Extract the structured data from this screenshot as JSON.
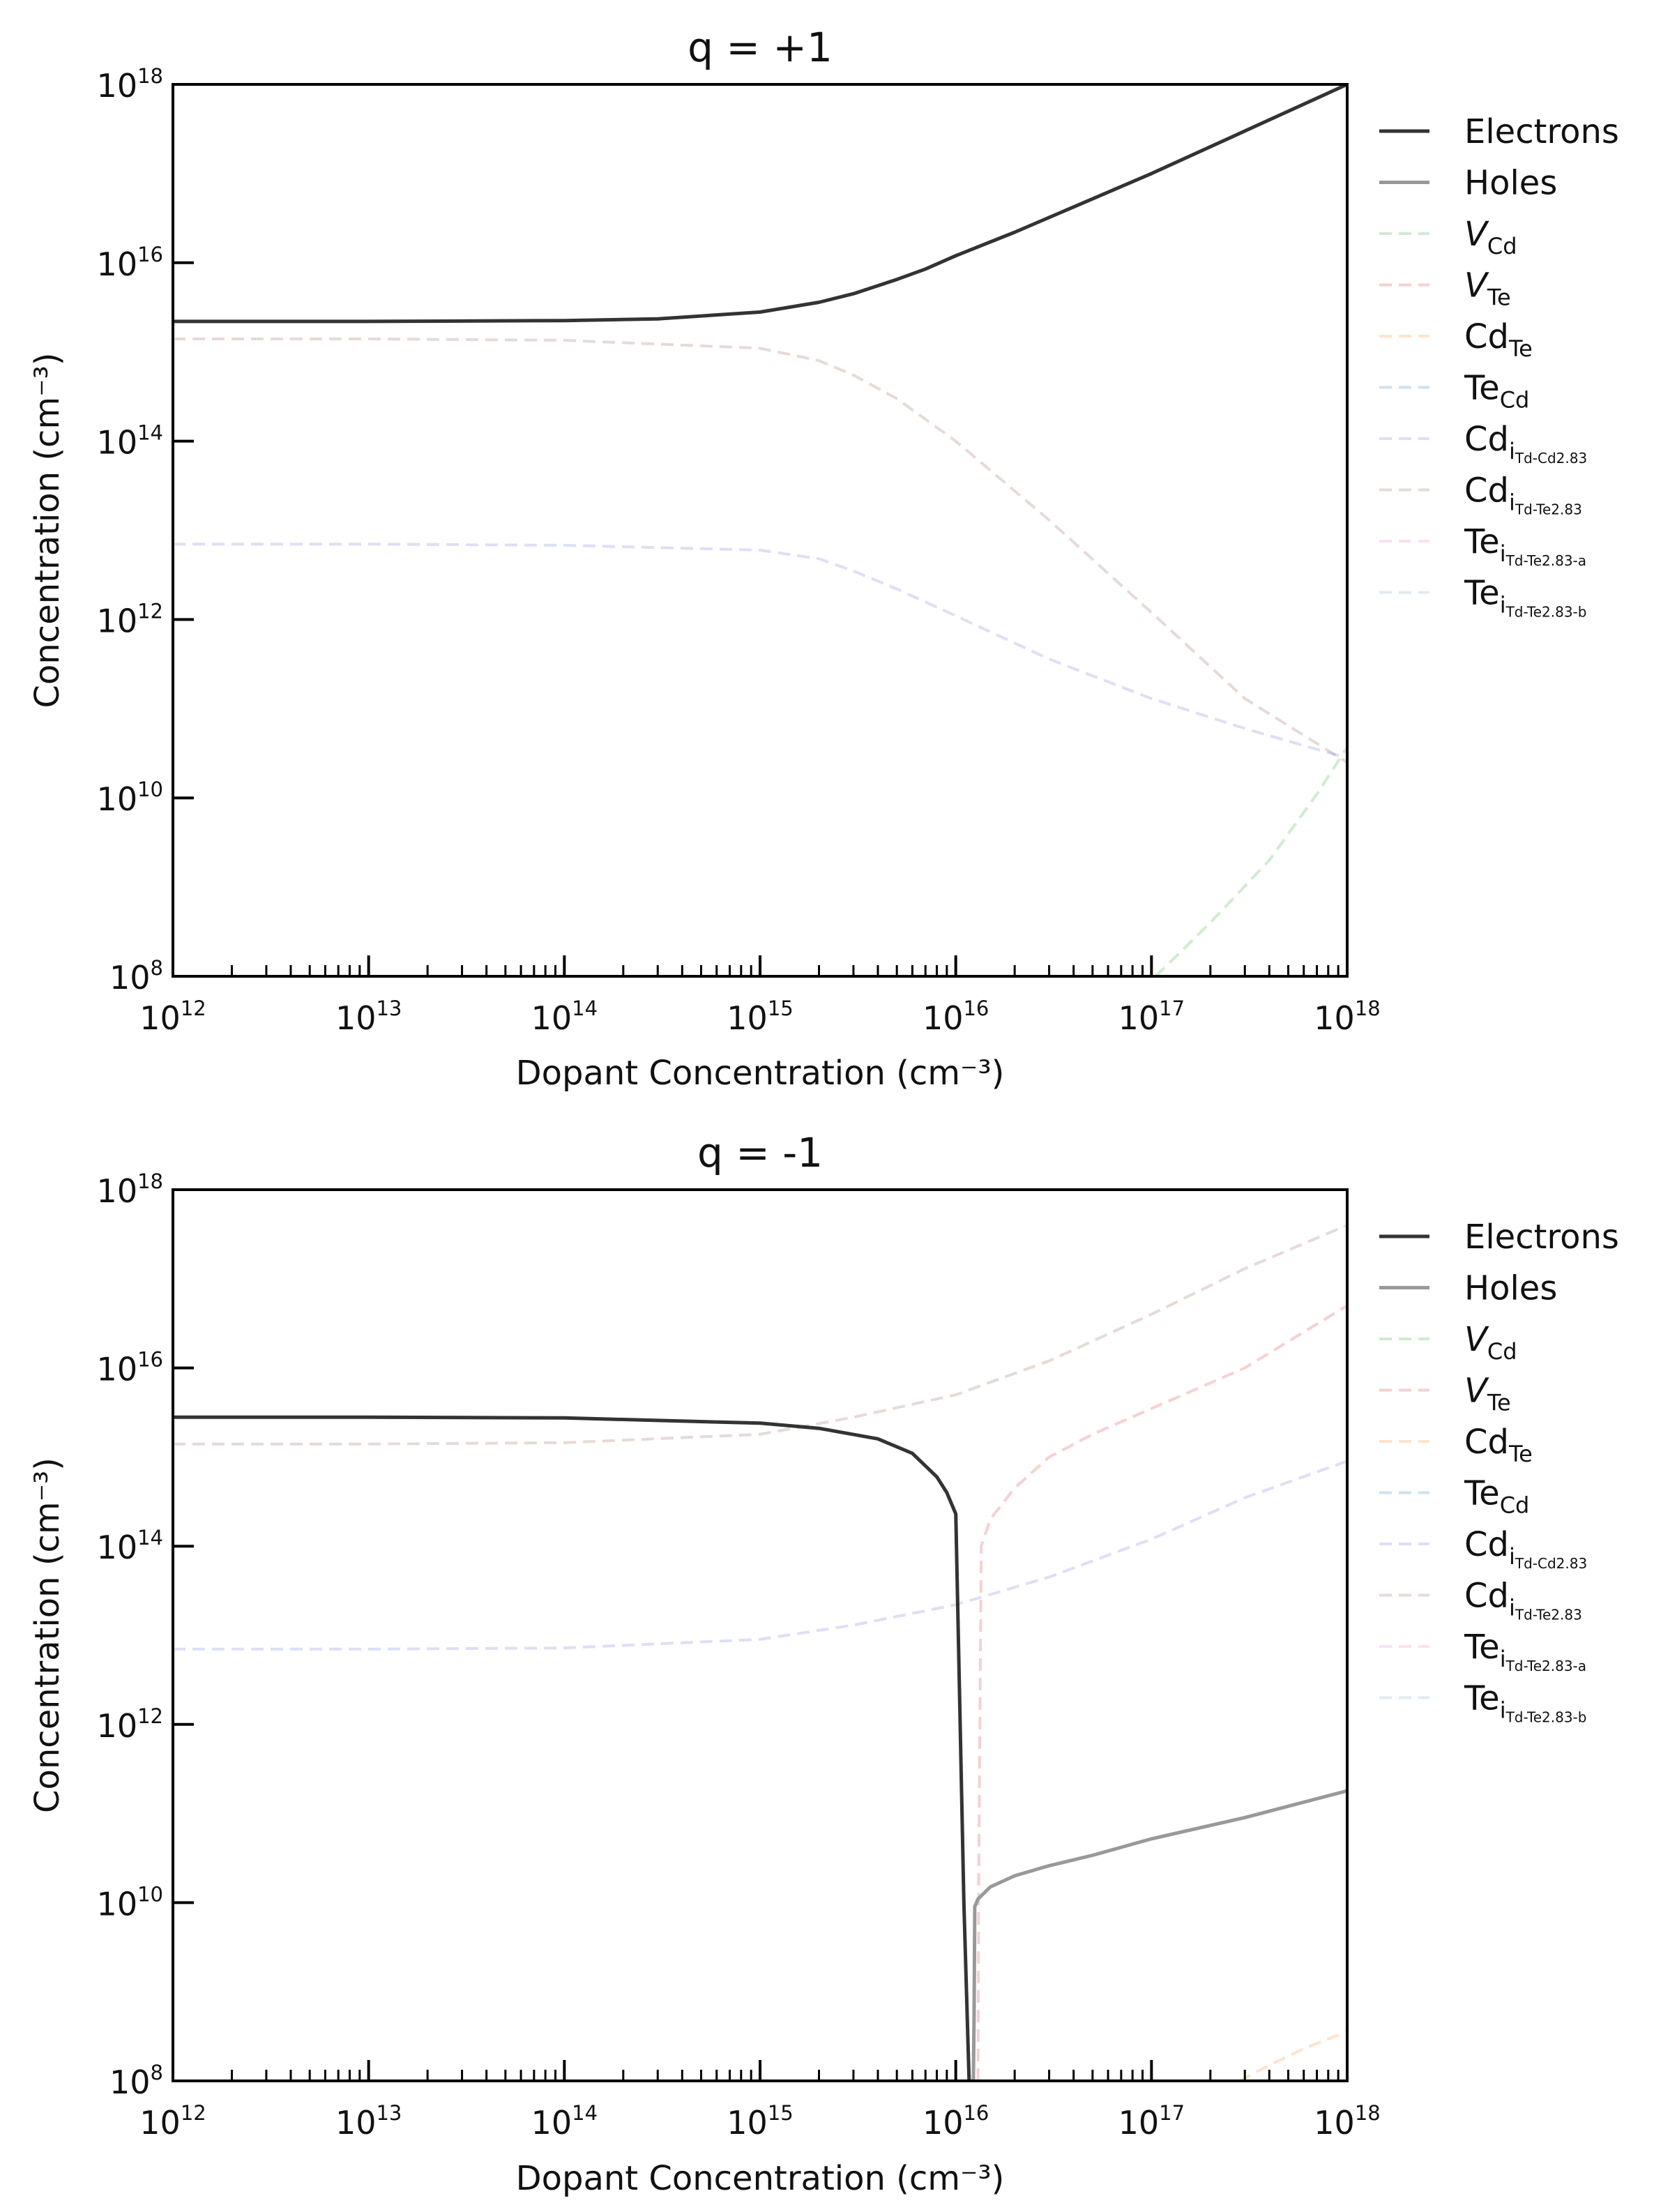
{
  "chart_data": [
    {
      "type": "line",
      "title": "q = +1",
      "xlabel": "Dopant Concentration (cm⁻³)",
      "ylabel": "Concentration (cm⁻³)",
      "xscale": "log",
      "yscale": "log",
      "xlim": [
        1000000000000.0,
        1e+18
      ],
      "ylim": [
        100000000.0,
        1e+18
      ],
      "x_ticks": [
        "10^12",
        "10^13",
        "10^14",
        "10^15",
        "10^16",
        "10^17",
        "10^18"
      ],
      "y_ticks": [
        "10^8",
        "10^10",
        "10^12",
        "10^14",
        "10^16",
        "10^18"
      ],
      "legend_position": "outside right, top",
      "legend": [
        {
          "key": "electrons",
          "label": "Electrons"
        },
        {
          "key": "holes",
          "label": "Holes"
        },
        {
          "key": "v_cd",
          "label": "VCd"
        },
        {
          "key": "v_te",
          "label": "VTe"
        },
        {
          "key": "cd_te",
          "label": "CdTe"
        },
        {
          "key": "te_cd",
          "label": "TeCd"
        },
        {
          "key": "cdi_cd",
          "label": "Cdi Td-Cd2.83"
        },
        {
          "key": "cdi_te",
          "label": "Cdi Td-Te2.83"
        },
        {
          "key": "tei_a",
          "label": "Tei Td-Te2.83-a"
        },
        {
          "key": "tei_b",
          "label": "Tei Td-Te2.83-b"
        }
      ],
      "series": [
        {
          "key": "electrons",
          "x": [
            1000000000000.0,
            10000000000000.0,
            100000000000000.0,
            300000000000000.0,
            1000000000000000.0,
            2000000000000000.0,
            3000000000000000.0,
            5000000000000000.0,
            7000000000000000.0,
            1e+16,
            2e+16,
            1e+17,
            1e+18
          ],
          "values": [
            2200000000000000.0,
            2200000000000000.0,
            2250000000000000.0,
            2350000000000000.0,
            2800000000000000.0,
            3600000000000000.0,
            4500000000000000.0,
            6500000000000000.0,
            8500000000000000.0,
            1.2e+16,
            2.2e+16,
            1e+17,
            1e+18
          ]
        },
        {
          "key": "cdi_te",
          "x": [
            1000000000000.0,
            10000000000000.0,
            100000000000000.0,
            1000000000000000.0,
            2000000000000000.0,
            3000000000000000.0,
            5000000000000000.0,
            1e+16,
            3e+16,
            1e+17,
            3e+17,
            1e+18
          ],
          "values": [
            1400000000000000.0,
            1400000000000000.0,
            1350000000000000.0,
            1100000000000000.0,
            800000000000000.0,
            550000000000000.0,
            300000000000000.0,
            100000000000000.0,
            13000000000000.0,
            1200000000000.0,
            130000000000.0,
            25000000000.0
          ]
        },
        {
          "key": "cdi_cd",
          "x": [
            1000000000000.0,
            10000000000000.0,
            100000000000000.0,
            1000000000000000.0,
            2000000000000000.0,
            3000000000000000.0,
            5000000000000000.0,
            1e+16,
            3e+16,
            1e+17,
            3e+17,
            1e+18
          ],
          "values": [
            7000000000000.0,
            7000000000000.0,
            6800000000000.0,
            6000000000000.0,
            4800000000000.0,
            3500000000000.0,
            2200000000000.0,
            1100000000000.0,
            360000000000.0,
            130000000000.0,
            60000000000.0,
            28000000000.0
          ]
        },
        {
          "key": "v_cd",
          "x": [
            1.05e+17,
            2e+17,
            4e+17,
            7e+17,
            1e+18
          ],
          "values": [
            100000000.0,
            400000000.0,
            2000000000.0,
            11000000000.0,
            37000000000.0
          ]
        }
      ]
    },
    {
      "type": "line",
      "title": "q = -1",
      "xlabel": "Dopant Concentration (cm⁻³)",
      "ylabel": "Concentration (cm⁻³)",
      "xscale": "log",
      "yscale": "log",
      "xlim": [
        1000000000000.0,
        1e+18
      ],
      "ylim": [
        100000000.0,
        1e+18
      ],
      "x_ticks": [
        "10^12",
        "10^13",
        "10^14",
        "10^15",
        "10^16",
        "10^17",
        "10^18"
      ],
      "y_ticks": [
        "10^8",
        "10^10",
        "10^12",
        "10^14",
        "10^16",
        "10^18"
      ],
      "legend_position": "outside right, top",
      "legend": [
        {
          "key": "electrons",
          "label": "Electrons"
        },
        {
          "key": "holes",
          "label": "Holes"
        },
        {
          "key": "v_cd",
          "label": "VCd"
        },
        {
          "key": "v_te",
          "label": "VTe"
        },
        {
          "key": "cd_te",
          "label": "CdTe"
        },
        {
          "key": "te_cd",
          "label": "TeCd"
        },
        {
          "key": "cdi_cd",
          "label": "Cdi Td-Cd2.83"
        },
        {
          "key": "cdi_te",
          "label": "Cdi Td-Te2.83"
        },
        {
          "key": "tei_a",
          "label": "Tei Td-Te2.83-a"
        },
        {
          "key": "tei_b",
          "label": "Tei Td-Te2.83-b"
        }
      ],
      "series": [
        {
          "key": "electrons",
          "x": [
            1000000000000.0,
            10000000000000.0,
            100000000000000.0,
            1000000000000000.0,
            2000000000000000.0,
            4000000000000000.0,
            6000000000000000.0,
            8000000000000000.0,
            9000000000000000.0,
            1e+16,
            1.1e+16,
            1.17e+16,
            1.18e+16
          ],
          "values": [
            2800000000000000.0,
            2800000000000000.0,
            2750000000000000.0,
            2400000000000000.0,
            2100000000000000.0,
            1600000000000000.0,
            1100000000000000.0,
            600000000000000.0,
            400000000000000.0,
            230000000000000.0,
            10000000000.0,
            100000000.0,
            100000000.0
          ]
        },
        {
          "key": "holes",
          "x": [
            1.23e+16,
            1.24e+16,
            1.25e+16,
            1.3e+16,
            1.5e+16,
            2e+16,
            3e+16,
            5e+16,
            1e+17,
            3e+17,
            1e+18
          ],
          "values": [
            100000000.0,
            500000000.0,
            9000000000.0,
            11000000000.0,
            15000000000.0,
            20000000000.0,
            26000000000.0,
            34000000000.0,
            52000000000.0,
            90000000000.0,
            180000000000.0
          ]
        },
        {
          "key": "v_te",
          "x": [
            1.3e+16,
            1.31e+16,
            1.35e+16,
            1.5e+16,
            2e+16,
            3e+16,
            5e+16,
            1e+17,
            3e+17,
            1e+18
          ],
          "values": [
            100000000.0,
            20000000000.0,
            100000000000000.0,
            200000000000000.0,
            450000000000000.0,
            1000000000000000.0,
            1800000000000000.0,
            3500000000000000.0,
            1e+16,
            5e+16
          ]
        },
        {
          "key": "cdi_te",
          "x": [
            1000000000000.0,
            10000000000000.0,
            100000000000000.0,
            1000000000000000.0,
            3000000000000000.0,
            1e+16,
            3e+16,
            1e+17,
            3e+17,
            1e+18
          ],
          "values": [
            1400000000000000.0,
            1400000000000000.0,
            1450000000000000.0,
            1800000000000000.0,
            2800000000000000.0,
            5000000000000000.0,
            1.2e+16,
            4e+16,
            1.3e+17,
            4e+17
          ]
        },
        {
          "key": "cdi_cd",
          "x": [
            1000000000000.0,
            10000000000000.0,
            100000000000000.0,
            1000000000000000.0,
            3000000000000000.0,
            1e+16,
            3e+16,
            1e+17,
            3e+17,
            1e+18
          ],
          "values": [
            7000000000000.0,
            7000000000000.0,
            7200000000000.0,
            9000000000000.0,
            13000000000000.0,
            22000000000000.0,
            45000000000000.0,
            120000000000000.0,
            350000000000000.0,
            900000000000000.0
          ]
        },
        {
          "key": "cd_te",
          "x": [
            2.8e+17,
            4e+17,
            6e+17,
            1e+18
          ],
          "values": [
            100000000.0,
            150000000.0,
            230000000.0,
            360000000.0
          ]
        }
      ]
    }
  ],
  "styles": {
    "electrons": {
      "color": "#333333",
      "opacity": 1,
      "dash": "none",
      "width": 5
    },
    "holes": {
      "color": "#999999",
      "opacity": 1,
      "dash": "none",
      "width": 5
    },
    "v_cd": {
      "color": "#2ca02c",
      "opacity": 0.22,
      "dash": "18,10",
      "width": 4
    },
    "v_te": {
      "color": "#d62728",
      "opacity": 0.22,
      "dash": "18,10",
      "width": 4
    },
    "cd_te": {
      "color": "#ff7f0e",
      "opacity": 0.22,
      "dash": "18,10",
      "width": 4
    },
    "te_cd": {
      "color": "#1f77b4",
      "opacity": 0.22,
      "dash": "18,10",
      "width": 4
    },
    "cdi_cd": {
      "color": "#6a6ad8",
      "opacity": 0.22,
      "dash": "18,10",
      "width": 4
    },
    "cdi_te": {
      "color": "#8c564b",
      "opacity": 0.22,
      "dash": "18,10",
      "width": 4
    },
    "tei_a": {
      "color": "#e377c2",
      "opacity": 0.22,
      "dash": "18,10",
      "width": 4
    },
    "tei_b": {
      "color": "#7f9fb7",
      "opacity": 0.22,
      "dash": "18,10",
      "width": 4
    }
  }
}
